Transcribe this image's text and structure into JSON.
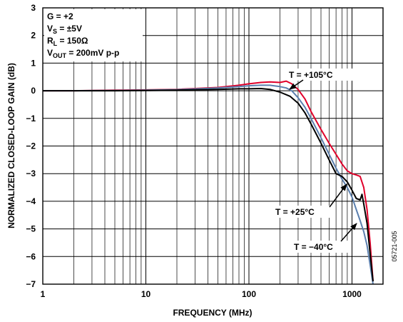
{
  "chart_data": {
    "type": "line",
    "xlabel": "FREQUENCY (MHz)",
    "ylabel": "NORMALIZED CLOSED-LOOP GAIN (dB)",
    "xscale": "log",
    "xlim": [
      1,
      2000
    ],
    "ylim": [
      -7,
      3
    ],
    "x_ticks": [
      1,
      10,
      100,
      1000
    ],
    "y_ticks": [
      3,
      2,
      1,
      0,
      -1,
      -2,
      -3,
      -4,
      -5,
      -6,
      -7
    ],
    "grid": true,
    "conditions": {
      "gain": {
        "main": "G = +2"
      },
      "vs": {
        "base": "V",
        "sub": "S",
        "rest": " = ±5V"
      },
      "rl": {
        "base": "R",
        "sub": "L",
        "rest": " = 150Ω"
      },
      "vout": {
        "base": "V",
        "sub": "OUT",
        "rest": " = 200mV p-p"
      }
    },
    "figure_code": "05721-005",
    "series": [
      {
        "name": "T = +105°C",
        "color": "#e0002a",
        "x": [
          1,
          2,
          5,
          10,
          20,
          50,
          80,
          100,
          130,
          160,
          200,
          230,
          260,
          300,
          350,
          400,
          500,
          600,
          700,
          800,
          900,
          1000,
          1100,
          1200,
          1300,
          1400,
          1500,
          1600
        ],
        "y": [
          0,
          0,
          0.02,
          0.03,
          0.05,
          0.12,
          0.2,
          0.25,
          0.3,
          0.32,
          0.3,
          0.35,
          0.25,
          0.05,
          -0.3,
          -0.75,
          -1.4,
          -1.9,
          -2.3,
          -2.65,
          -2.9,
          -3.0,
          -3.05,
          -3.1,
          -3.5,
          -4.3,
          -5.5,
          -6.9
        ]
      },
      {
        "name": "T = +25°C",
        "color": "#000000",
        "x": [
          1,
          2,
          5,
          10,
          20,
          50,
          80,
          100,
          130,
          160,
          200,
          250,
          300,
          350,
          400,
          500,
          600,
          700,
          800,
          900,
          1000,
          1100,
          1200,
          1250,
          1300,
          1400,
          1500,
          1600
        ],
        "y": [
          0,
          0,
          0,
          0.01,
          0.02,
          0.05,
          0.07,
          0.07,
          0.08,
          0.05,
          -0.05,
          -0.2,
          -0.45,
          -0.8,
          -1.2,
          -1.9,
          -2.5,
          -3.0,
          -3.1,
          -3.3,
          -3.6,
          -3.9,
          -3.95,
          -3.75,
          -4.1,
          -4.8,
          -5.9,
          -6.9
        ]
      },
      {
        "name": "T = −40°C",
        "color": "#5b7fae",
        "x": [
          1,
          2,
          5,
          10,
          20,
          50,
          80,
          100,
          130,
          160,
          200,
          230,
          260,
          300,
          350,
          400,
          500,
          600,
          700,
          800,
          900,
          1000,
          1100,
          1200,
          1300,
          1400,
          1500,
          1600
        ],
        "y": [
          0,
          0,
          0.01,
          0.02,
          0.04,
          0.1,
          0.15,
          0.18,
          0.2,
          0.2,
          0.15,
          0.1,
          0.0,
          -0.25,
          -0.6,
          -1.0,
          -1.7,
          -2.3,
          -2.8,
          -3.2,
          -3.5,
          -3.85,
          -4.3,
          -4.7,
          -5.1,
          -5.6,
          -6.3,
          -7.0
        ]
      }
    ],
    "annotations": [
      {
        "text": "T = +105°C",
        "series": 0
      },
      {
        "text": "T = +25°C",
        "series": 1
      },
      {
        "text": "T = −40°C",
        "series": 2
      }
    ]
  }
}
